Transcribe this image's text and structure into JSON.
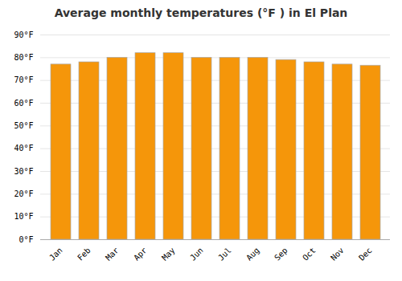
{
  "chart_data": {
    "type": "bar",
    "title": "Average monthly temperatures (°F ) in El Plan",
    "categories": [
      "Jan",
      "Feb",
      "Mar",
      "Apr",
      "May",
      "Jun",
      "Jul",
      "Aug",
      "Sep",
      "Oct",
      "Nov",
      "Dec"
    ],
    "values": [
      77,
      78,
      80,
      82,
      82,
      80,
      80,
      80,
      79,
      78,
      77,
      76.5
    ],
    "color": "#F5960A",
    "ylim": [
      0,
      90
    ],
    "yticks": [
      {
        "value": 0,
        "label": "0°F"
      },
      {
        "value": 10,
        "label": "10°F"
      },
      {
        "value": 20,
        "label": "20°F"
      },
      {
        "value": 30,
        "label": "30°F"
      },
      {
        "value": 40,
        "label": "40°F"
      },
      {
        "value": 50,
        "label": "50°F"
      },
      {
        "value": 60,
        "label": "60°F"
      },
      {
        "value": 70,
        "label": "70°F"
      },
      {
        "value": 80,
        "label": "80°F"
      },
      {
        "value": 90,
        "label": "90°F"
      }
    ],
    "grid": true
  }
}
